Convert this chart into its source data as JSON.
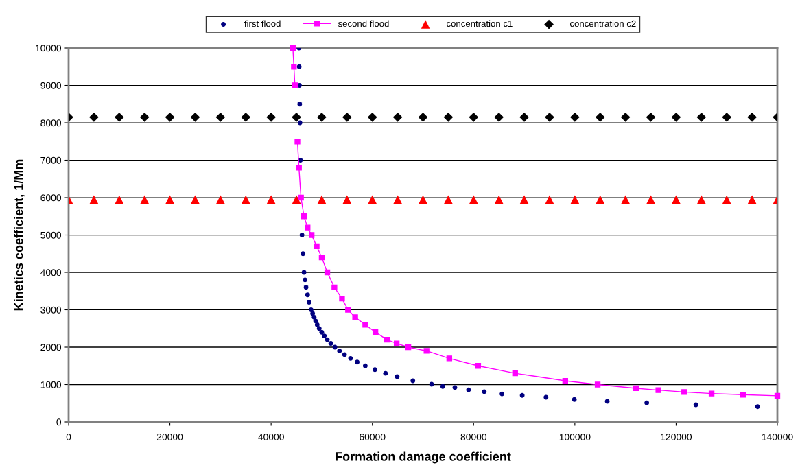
{
  "chart_data": {
    "type": "scatter",
    "xlabel": "Formation damage coefficient",
    "ylabel": "Kinetics coefficient, 1/Mm",
    "xlim": [
      0,
      140000
    ],
    "ylim": [
      0,
      10000
    ],
    "xticks": [
      0,
      20000,
      40000,
      60000,
      80000,
      100000,
      120000,
      140000
    ],
    "yticks": [
      0,
      1000,
      2000,
      3000,
      4000,
      5000,
      6000,
      7000,
      8000,
      9000,
      10000
    ],
    "grid": "y",
    "legend": "top",
    "series": [
      {
        "name": "first flood",
        "marker": "circle",
        "color": "#000080",
        "x": [
          45500,
          45550,
          45600,
          45650,
          45700,
          45750,
          45800,
          46000,
          46100,
          46300,
          46500,
          46700,
          46900,
          47200,
          47500,
          47900,
          48200,
          48500,
          48800,
          49100,
          49500,
          50000,
          50500,
          51100,
          51800,
          52600,
          53500,
          54500,
          55700,
          57000,
          58600,
          60500,
          62600,
          64900,
          68000,
          71700,
          73900,
          76300,
          79000,
          82100,
          85600,
          89600,
          94300,
          99900,
          106400,
          114200,
          123900,
          136100
        ],
        "values": [
          10000,
          9500,
          9000,
          8500,
          8000,
          null,
          7000,
          null,
          5000,
          4500,
          4000,
          3800,
          3600,
          3400,
          3200,
          3000,
          2900,
          2800,
          2700,
          2600,
          2500,
          2400,
          2300,
          2200,
          2100,
          2000,
          1900,
          1800,
          1700,
          1600,
          1500,
          1400,
          1300,
          1210,
          1100,
          1010,
          950,
          920,
          860,
          810,
          750,
          710,
          660,
          600,
          550,
          510,
          460,
          410
        ]
      },
      {
        "name": "second flood",
        "type": "line",
        "marker": "square",
        "line_style": "solid",
        "color": "#ff00ff",
        "x": [
          44300,
          44500,
          44700,
          44900,
          45200,
          45500,
          45900,
          46500,
          47200,
          48000,
          49000,
          50000,
          51100,
          52500,
          54000,
          55200,
          56600,
          58600,
          60600,
          62900,
          64800,
          67100,
          70700,
          75200,
          80900,
          88200,
          98100,
          104500,
          112100,
          116500,
          121600,
          127000,
          133200,
          140000
        ],
        "values": [
          10000,
          9500,
          9000,
          null,
          7500,
          6800,
          6000,
          5500,
          5200,
          5000,
          4700,
          4400,
          4000,
          3600,
          3300,
          3000,
          2800,
          2600,
          2400,
          2200,
          2100,
          2000,
          1900,
          1700,
          1500,
          1300,
          1100,
          1000,
          900,
          850,
          800,
          760,
          730,
          700
        ]
      },
      {
        "name": "concentration c1",
        "marker": "triangle",
        "color": "#ff0000",
        "x": [
          0,
          5000,
          10000,
          15000,
          20000,
          25000,
          30000,
          35000,
          40000,
          45000,
          50000,
          55000,
          60000,
          65000,
          70000,
          75000,
          80000,
          85000,
          90000,
          95000,
          100000,
          105000,
          110000,
          115000,
          120000,
          125000,
          130000,
          135000,
          140000
        ],
        "values": [
          5950,
          5950,
          5950,
          5950,
          5950,
          5950,
          5950,
          5950,
          5950,
          5950,
          5950,
          5950,
          5950,
          5950,
          5950,
          5950,
          5950,
          5950,
          5950,
          5950,
          5950,
          5950,
          5950,
          5950,
          5950,
          5950,
          5950,
          5950,
          5950
        ]
      },
      {
        "name": "concentration c2",
        "marker": "diamond",
        "color": "#000000",
        "x": [
          0,
          5000,
          10000,
          15000,
          20000,
          25000,
          30000,
          35000,
          40000,
          45000,
          50000,
          55000,
          60000,
          65000,
          70000,
          75000,
          80000,
          85000,
          90000,
          95000,
          100000,
          105000,
          110000,
          115000,
          120000,
          125000,
          130000,
          135000,
          140000
        ],
        "values": [
          8150,
          8150,
          8150,
          8150,
          8150,
          8150,
          8150,
          8150,
          8150,
          8150,
          8150,
          8150,
          8150,
          8150,
          8150,
          8150,
          8150,
          8150,
          8150,
          8150,
          8150,
          8150,
          8150,
          8150,
          8150,
          8150,
          8150,
          8150,
          8150
        ]
      }
    ]
  }
}
